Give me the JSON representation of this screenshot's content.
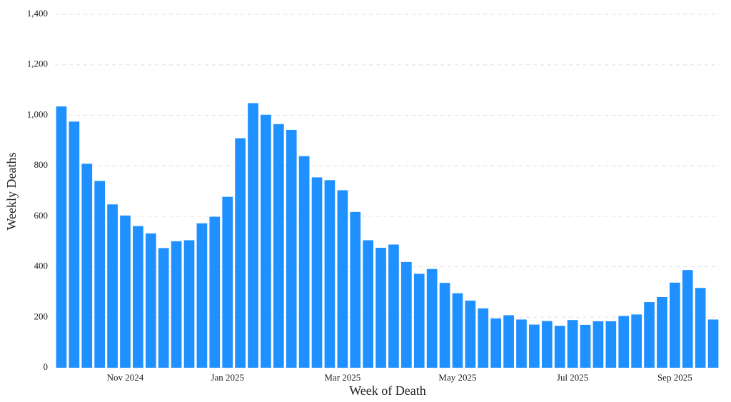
{
  "chart_data": {
    "type": "bar",
    "x_label": "Week of Death",
    "y_label": "Weekly Deaths",
    "categories": [
      null,
      null,
      null,
      null,
      null,
      "Nov 2024",
      null,
      null,
      null,
      null,
      null,
      null,
      null,
      "Jan 2025",
      null,
      null,
      null,
      null,
      null,
      null,
      null,
      null,
      "Mar 2025",
      null,
      null,
      null,
      null,
      null,
      null,
      null,
      null,
      "May 2025",
      null,
      null,
      null,
      null,
      null,
      null,
      null,
      null,
      "Jul 2025",
      null,
      null,
      null,
      null,
      null,
      null,
      null,
      "Sep 2025",
      null,
      null,
      null
    ],
    "values": [
      1035,
      975,
      808,
      740,
      647,
      603,
      561,
      532,
      474,
      501,
      505,
      572,
      598,
      677,
      909,
      1048,
      1002,
      965,
      942,
      838,
      754,
      743,
      703,
      617,
      505,
      475,
      488,
      419,
      372,
      391,
      336,
      295,
      266,
      235,
      195,
      208,
      191,
      171,
      185,
      166,
      189,
      170,
      184,
      184,
      205,
      211,
      260,
      280,
      337,
      387,
      316,
      191
    ],
    "color": "#1e90ff",
    "ylim": [
      0,
      1400
    ],
    "yticks": [
      0,
      200,
      400,
      600,
      800,
      1000,
      1200,
      1400
    ],
    "ytick_labels_comma": true,
    "grid": true
  }
}
